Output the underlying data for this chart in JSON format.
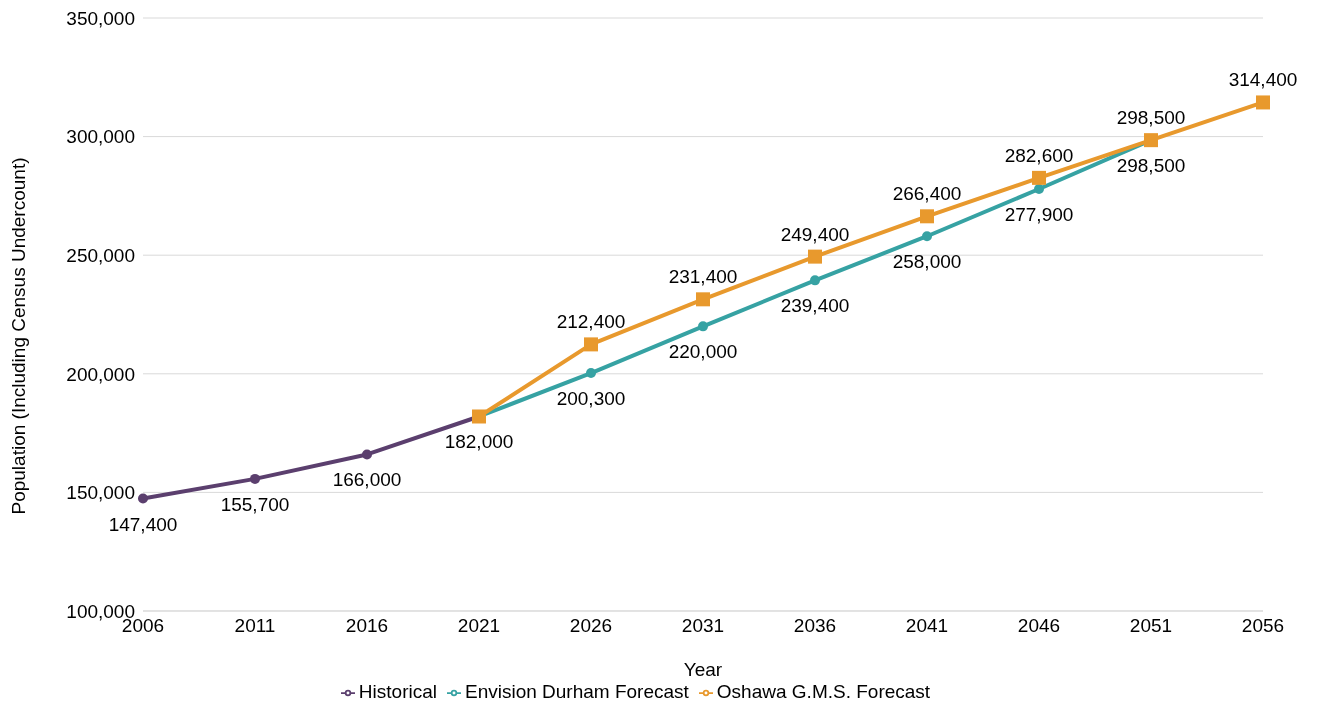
{
  "chart_data": {
    "type": "line",
    "xlabel": "Year",
    "ylabel": "Population (Including Census Undercount)",
    "categories": [
      "2006",
      "2011",
      "2016",
      "2021",
      "2026",
      "2031",
      "2036",
      "2041",
      "2046",
      "2051",
      "2056"
    ],
    "series": [
      {
        "name": "Historical",
        "color": "#5b3f6e",
        "marker": "circle",
        "values": [
          147400,
          155700,
          166000,
          182000,
          null,
          null,
          null,
          null,
          null,
          null,
          null
        ],
        "value_labels": [
          "147,400",
          "155,700",
          "166,000",
          "182,000",
          null,
          null,
          null,
          null,
          null,
          null,
          null
        ]
      },
      {
        "name": "Envision Durham Forecast",
        "color": "#36a2a3",
        "marker": "circle",
        "values": [
          null,
          null,
          null,
          182000,
          200300,
          220000,
          239400,
          258000,
          277900,
          298500,
          null
        ],
        "value_labels": [
          null,
          null,
          null,
          null,
          "200,300",
          "220,000",
          "239,400",
          "258,000",
          "277,900",
          "298,500",
          null
        ]
      },
      {
        "name": "Oshawa G.M.S. Forecast",
        "color": "#e8992d",
        "marker": "square",
        "values": [
          null,
          null,
          null,
          182000,
          212400,
          231400,
          249400,
          266400,
          282600,
          298500,
          314400
        ],
        "value_labels": [
          null,
          null,
          null,
          null,
          "212,400",
          "231,400",
          "249,400",
          "266,400",
          "282,600",
          "298,500",
          "314,400"
        ]
      }
    ],
    "ylim": [
      100000,
      350000
    ],
    "yticks": [
      {
        "value": 100000,
        "label": "100,000"
      },
      {
        "value": 150000,
        "label": "150,000"
      },
      {
        "value": 200000,
        "label": "200,000"
      },
      {
        "value": 250000,
        "label": "250,000"
      },
      {
        "value": 300000,
        "label": "300,000"
      },
      {
        "value": 350000,
        "label": "350,000"
      }
    ],
    "grid": "y",
    "legend": "bottom",
    "line_style": "solid"
  }
}
